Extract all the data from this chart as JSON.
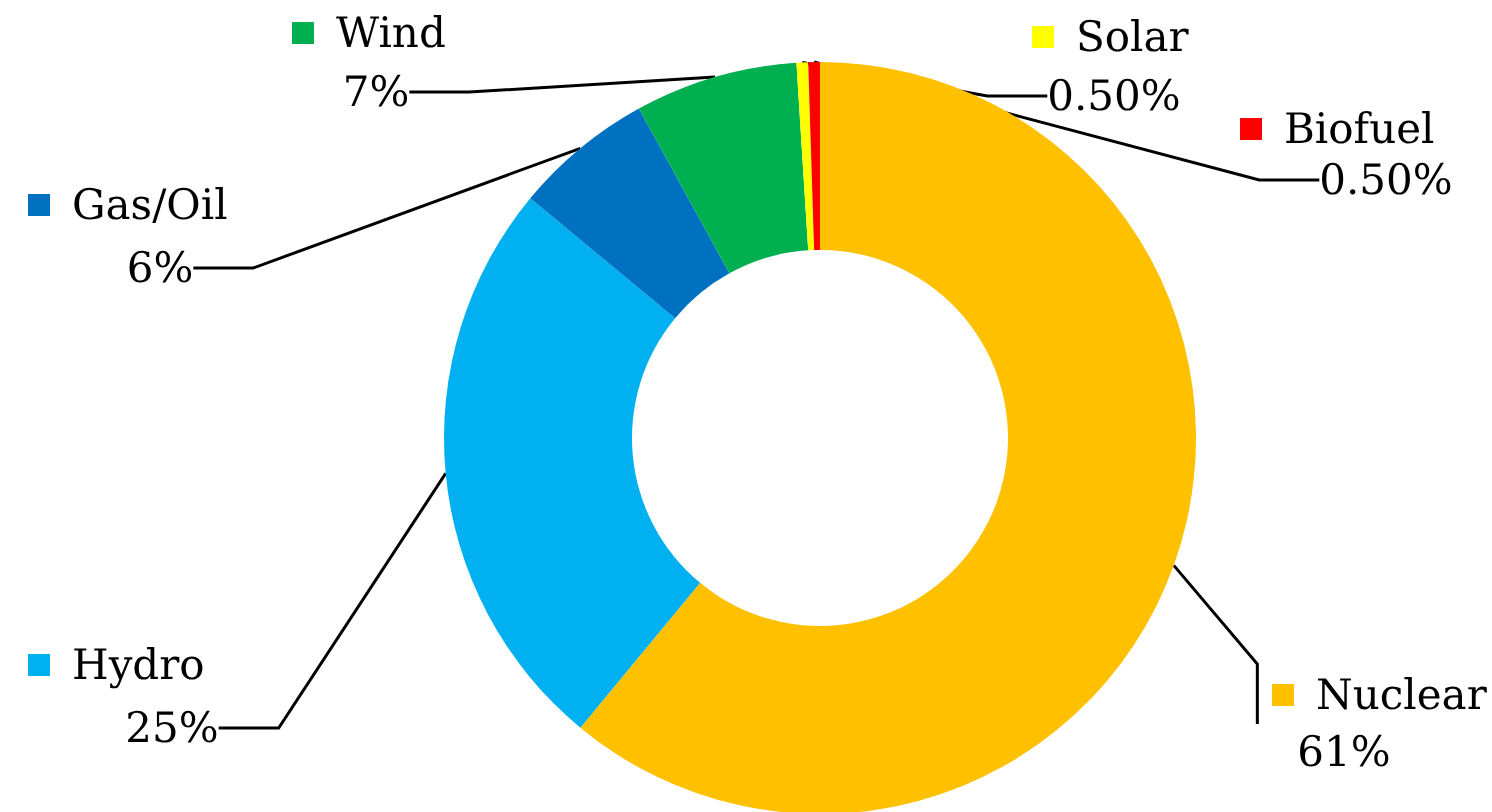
{
  "chart_data": {
    "type": "donut",
    "categories": [
      "Nuclear",
      "Hydro",
      "Gas/Oil",
      "Wind",
      "Solar",
      "Biofuel"
    ],
    "values": [
      61,
      25,
      6,
      7,
      0.5,
      0.5
    ],
    "value_labels": [
      "61%",
      "25%",
      "6%",
      "7%",
      "0.50%",
      "0.50%"
    ],
    "colors": [
      "#ffc000",
      "#00b0f0",
      "#0070c0",
      "#00b050",
      "#ffff00",
      "#ff0000"
    ],
    "legend": "top left"
  }
}
